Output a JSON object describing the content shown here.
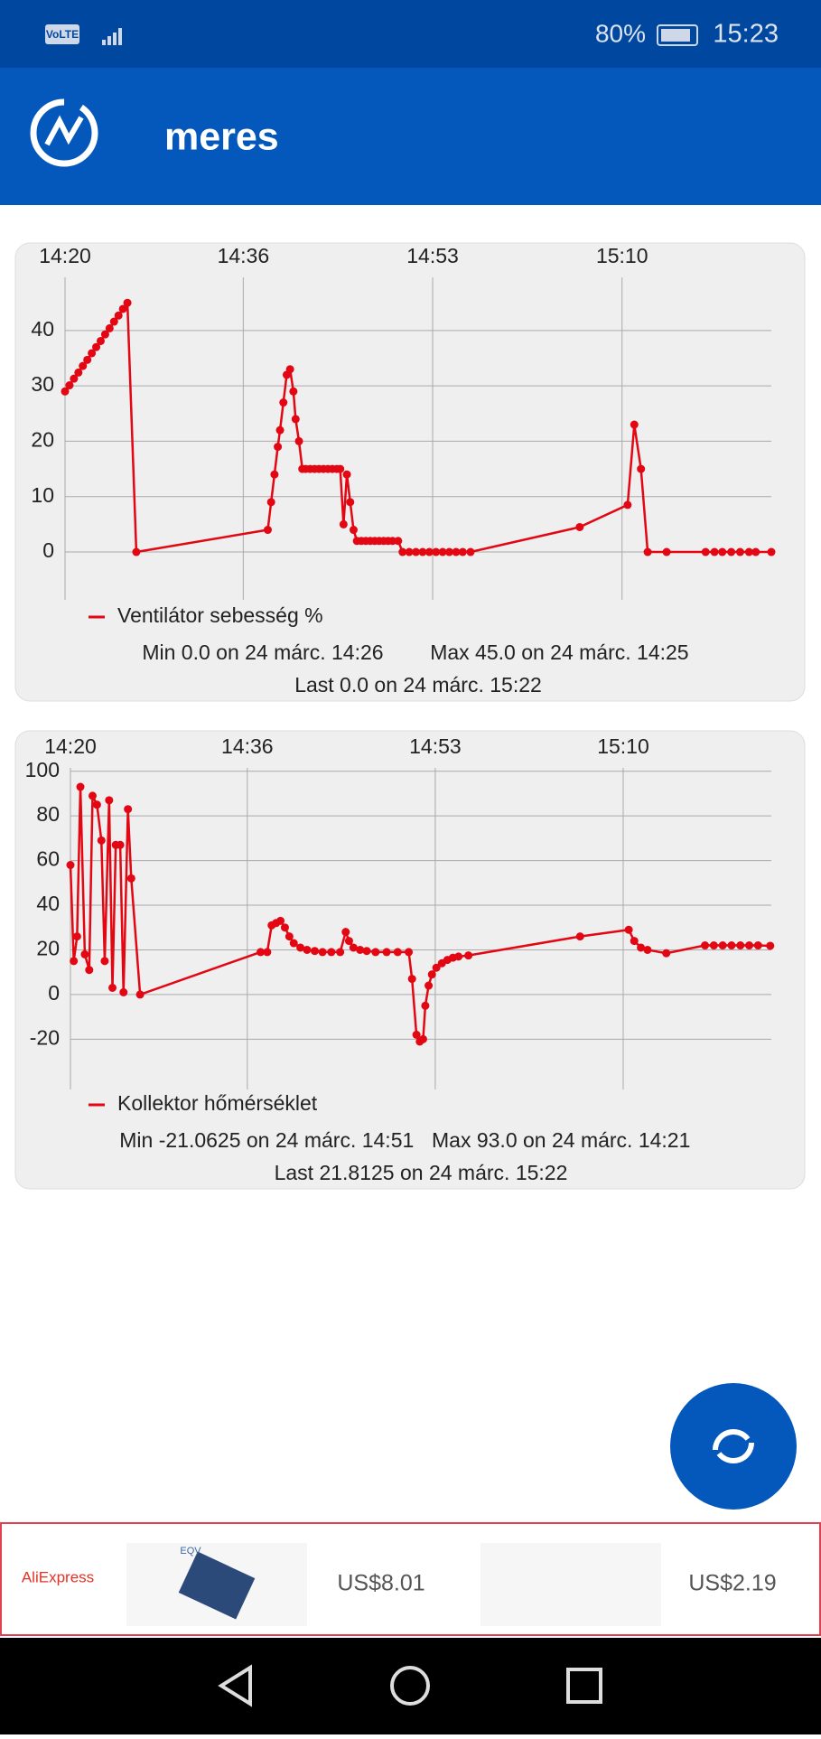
{
  "status_bar": {
    "network": "VoLTE",
    "battery": "80%",
    "time": "15:23"
  },
  "app_bar": {
    "title": "meres"
  },
  "chart_data": [
    {
      "type": "line",
      "xlim": [
        860,
        923.4
      ],
      "xticks": [
        {
          "value": 860,
          "label": "14:20"
        },
        {
          "value": 876,
          "label": "14:36"
        },
        {
          "value": 893,
          "label": "14:53"
        },
        {
          "value": 910,
          "label": "15:10"
        }
      ],
      "ylim": [
        -4.4,
        49.6
      ],
      "yticks": [
        0,
        10,
        20,
        30,
        40
      ],
      "grid": true,
      "x": [
        860,
        860.4,
        860.8,
        861.2,
        861.6,
        862,
        862.4,
        862.8,
        863.2,
        863.6,
        864,
        864.4,
        864.8,
        865.2,
        865.6,
        866.4,
        878.2,
        878.5,
        878.8,
        879.1,
        879.3,
        879.6,
        879.9,
        880.2,
        880.5,
        880.7,
        881,
        881.3,
        881.6,
        882,
        882.4,
        882.8,
        883.2,
        883.6,
        884,
        884.4,
        884.7,
        885,
        885.3,
        885.6,
        885.9,
        886.2,
        886.6,
        887,
        887.4,
        887.8,
        888.2,
        888.6,
        889,
        889.4,
        889.9,
        890.3,
        890.9,
        891.5,
        892.1,
        892.7,
        893.3,
        893.9,
        894.5,
        895.1,
        895.7,
        896.4,
        906.2,
        910.5,
        911.1,
        911.7,
        912.3,
        914,
        917.5,
        918.3,
        919,
        919.8,
        920.6,
        921.4,
        922,
        923.4
      ],
      "series": [
        {
          "name": "Ventilátor sebesség %",
          "color": "#e30613",
          "values": [
            29,
            30.1,
            31.3,
            32.4,
            33.6,
            34.7,
            35.9,
            37,
            38.1,
            39.3,
            40.4,
            41.6,
            42.7,
            43.9,
            45,
            0,
            4,
            9,
            14,
            19,
            22,
            27,
            32,
            33,
            29,
            24,
            20,
            15,
            15,
            15,
            15,
            15,
            15,
            15,
            15,
            15,
            15,
            5,
            14,
            9,
            4,
            2,
            2,
            2,
            2,
            2,
            2,
            2,
            2,
            2,
            2,
            0,
            0,
            0,
            0,
            0,
            0,
            0,
            0,
            0,
            0,
            0,
            4.5,
            8.5,
            23,
            15,
            0,
            0,
            0,
            0,
            0,
            0,
            0,
            0,
            0,
            0
          ]
        }
      ],
      "stats": {
        "min": "Min   0.0 on 24 márc. 14:26",
        "max": "Max   45.0 on 24 márc. 14:25",
        "last": "Last   0.0 on 24 márc. 15:22"
      }
    },
    {
      "type": "line",
      "xlim": [
        860,
        923.4
      ],
      "xticks": [
        {
          "value": 860,
          "label": "14:20"
        },
        {
          "value": 876,
          "label": "14:36"
        },
        {
          "value": 893,
          "label": "14:53"
        },
        {
          "value": 910,
          "label": "15:10"
        }
      ],
      "ylim": [
        -32,
        101.5
      ],
      "yticks": [
        -20,
        0,
        20,
        40,
        60,
        80,
        100
      ],
      "grid": true,
      "x": [
        860,
        860.3,
        860.6,
        860.9,
        861.3,
        861.7,
        862,
        862.4,
        862.8,
        863.1,
        863.5,
        863.8,
        864.1,
        864.5,
        864.8,
        865.2,
        865.5,
        866.3,
        877.2,
        877.8,
        878.2,
        878.6,
        879,
        879.4,
        879.8,
        880.2,
        880.8,
        881.4,
        882.1,
        882.8,
        883.6,
        884.4,
        884.9,
        885.2,
        885.6,
        886.2,
        886.8,
        887.6,
        888.6,
        889.6,
        890.6,
        890.9,
        891.3,
        891.6,
        891.9,
        892.1,
        892.4,
        892.7,
        893.1,
        893.6,
        894.1,
        894.6,
        895.1,
        896,
        906.1,
        910.5,
        911,
        911.6,
        912.2,
        913.9,
        917.4,
        918.2,
        919,
        919.8,
        920.6,
        921.4,
        922.2,
        923.3
      ],
      "series": [
        {
          "name": "Kollektor hőmérséklet",
          "color": "#e30613",
          "values": [
            58,
            15,
            26,
            93,
            18,
            11,
            89,
            85,
            69,
            15,
            87,
            3,
            67,
            67,
            1,
            83,
            52,
            0,
            19,
            19,
            31,
            32,
            33,
            30,
            26,
            23,
            21,
            20,
            19.5,
            19,
            19,
            19,
            28,
            24,
            21,
            20,
            19.5,
            19,
            19,
            19,
            19,
            7,
            -18,
            -21.0625,
            -20,
            -5,
            4,
            9,
            12,
            14,
            15.5,
            16.5,
            17,
            17.5,
            26,
            29,
            24,
            21,
            20,
            18.5,
            22,
            22,
            22,
            22,
            22,
            22,
            22,
            21.8125
          ]
        }
      ],
      "stats": {
        "min": "Min   -21.0625 on 24 márc. 14:51",
        "max": "Max   93.0 on 24 márc. 14:21",
        "last": "Last   21.8125 on 24 márc. 15:22"
      }
    }
  ],
  "ad": {
    "brand": "AliExpress",
    "item_label": "EQV",
    "price_1": "US$8.01",
    "price_2": "US$2.19"
  }
}
